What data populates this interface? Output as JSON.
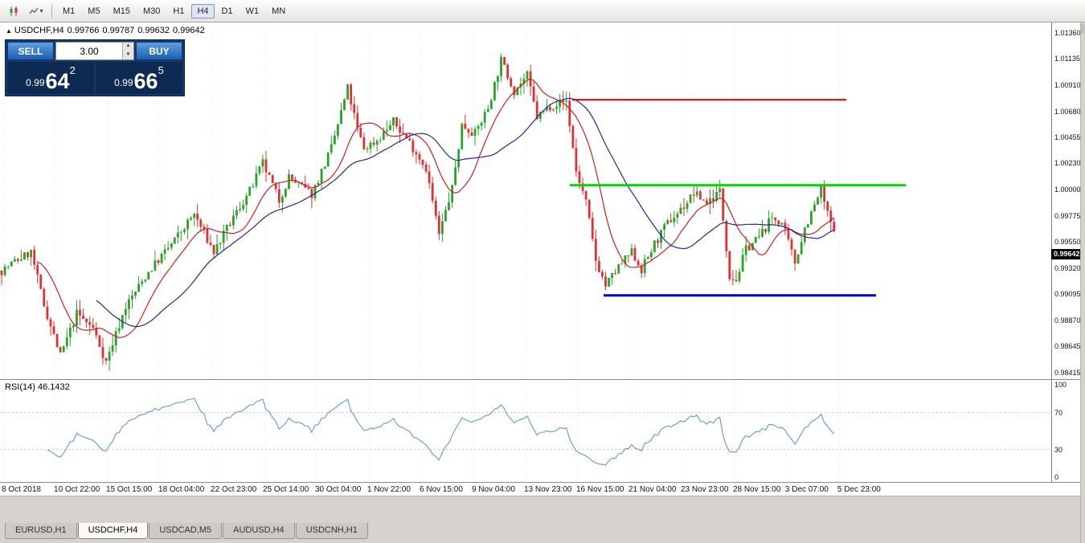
{
  "toolbar": {
    "timeframes": [
      {
        "label": "M1",
        "active": false
      },
      {
        "label": "M5",
        "active": false
      },
      {
        "label": "M15",
        "active": false
      },
      {
        "label": "M30",
        "active": false
      },
      {
        "label": "H1",
        "active": false
      },
      {
        "label": "H4",
        "active": true
      },
      {
        "label": "D1",
        "active": false
      },
      {
        "label": "W1",
        "active": false
      },
      {
        "label": "MN",
        "active": false
      }
    ]
  },
  "chart_header": {
    "expand_glyph": "▲",
    "symbol": "USDCHF,H4",
    "open": "0.99766",
    "high": "0.99787",
    "low": "0.99632",
    "close": "0.99642"
  },
  "trade_panel": {
    "sell_label": "SELL",
    "buy_label": "BUY",
    "volume": "3.00",
    "sell": {
      "prefix": "0.99",
      "big": "64",
      "sup": "2"
    },
    "buy": {
      "prefix": "0.99",
      "big": "66",
      "sup": "5"
    }
  },
  "price_axis": {
    "labels": [
      "1.01360",
      "1.01135",
      "1.00910",
      "1.00680",
      "1.00455",
      "1.00230",
      "1.00000",
      "0.99775",
      "0.99550",
      "0.99320",
      "0.99095",
      "0.98870",
      "0.98645",
      "0.98415"
    ],
    "current": "0.99642"
  },
  "time_axis": {
    "labels": [
      "8 Oct 2018",
      "10 Oct 22:00",
      "15 Oct 15:00",
      "18 Oct 04:00",
      "22 Oct 23:00",
      "25 Oct 14:00",
      "30 Oct 04:00",
      "1 Nov 22:00",
      "6 Nov 15:00",
      "9 Nov 04:00",
      "13 Nov 23:00",
      "16 Nov 15:00",
      "21 Nov 04:00",
      "23 Nov 23:00",
      "28 Nov 15:00",
      "3 Dec 07:00",
      "5 Dec 23:00"
    ]
  },
  "rsi": {
    "label": "RSI(14) 46.1432",
    "axis_labels": [
      "100",
      "70",
      "30",
      "0"
    ]
  },
  "tabs": [
    {
      "label": "EURUSD,H1",
      "active": false
    },
    {
      "label": "USDCHF,H4",
      "active": true
    },
    {
      "label": "USDCAD,M5",
      "active": false
    },
    {
      "label": "AUDUSD,H4",
      "active": false
    },
    {
      "label": "USDCNH,H1",
      "active": false
    }
  ],
  "colors": {
    "bull": "#28a428",
    "bear": "#e03030",
    "ma_fast": "#cc2020",
    "ma_slow": "#2626a0",
    "rsi_line": "#5b9bd5",
    "grid": "#e4e4e4",
    "level": "#c8c8c8"
  },
  "chart_data": {
    "type": "candlestick",
    "symbol": "USDCHF",
    "timeframe": "H4",
    "price_range": [
      0.9836,
      1.0145
    ],
    "candle_count": 256,
    "visible_span_frac": 0.795,
    "seed": 7,
    "noise": 0.0004,
    "wick": 0.0009,
    "last_close": 0.99642,
    "keyframes": [
      [
        0,
        0.993
      ],
      [
        4,
        0.9938
      ],
      [
        9,
        0.9946
      ],
      [
        13,
        0.99
      ],
      [
        18,
        0.9856
      ],
      [
        23,
        0.9893
      ],
      [
        28,
        0.988
      ],
      [
        32,
        0.9851
      ],
      [
        38,
        0.9899
      ],
      [
        45,
        0.9929
      ],
      [
        52,
        0.9953
      ],
      [
        59,
        0.9979
      ],
      [
        65,
        0.9946
      ],
      [
        71,
        0.9976
      ],
      [
        76,
        0.9999
      ],
      [
        80,
        1.0023
      ],
      [
        85,
        0.9991
      ],
      [
        88,
        1.0011
      ],
      [
        95,
        0.9996
      ],
      [
        101,
        1.0036
      ],
      [
        106,
        1.0088
      ],
      [
        109,
        1.0052
      ],
      [
        111,
        1.0036
      ],
      [
        115,
        1.0043
      ],
      [
        120,
        1.0059
      ],
      [
        125,
        1.0041
      ],
      [
        130,
        1.0019
      ],
      [
        134,
        0.9961
      ],
      [
        138,
        1.0001
      ],
      [
        141,
        1.0056
      ],
      [
        145,
        1.0049
      ],
      [
        149,
        1.0071
      ],
      [
        153,
        1.0112
      ],
      [
        157,
        1.0086
      ],
      [
        161,
        1.0099
      ],
      [
        164,
        1.0063
      ],
      [
        168,
        1.0073
      ],
      [
        173,
        1.0077
      ],
      [
        176,
        1.0016
      ],
      [
        179,
        0.9989
      ],
      [
        182,
        0.9939
      ],
      [
        185,
        0.9917
      ],
      [
        189,
        0.9933
      ],
      [
        193,
        0.9946
      ],
      [
        196,
        0.9931
      ],
      [
        200,
        0.9953
      ],
      [
        204,
        0.9971
      ],
      [
        209,
        0.9986
      ],
      [
        212,
        0.9997
      ],
      [
        216,
        0.9989
      ],
      [
        220,
        0.9999
      ],
      [
        223,
        0.9926
      ],
      [
        225,
        0.9922
      ],
      [
        228,
        0.9949
      ],
      [
        232,
        0.9959
      ],
      [
        236,
        0.9976
      ],
      [
        239,
        0.9971
      ],
      [
        243,
        0.9937
      ],
      [
        246,
        0.9967
      ],
      [
        249,
        0.9986
      ],
      [
        251,
        1.0001
      ],
      [
        253,
        0.9979
      ],
      [
        255,
        0.99642
      ]
    ],
    "overlays": [
      {
        "name": "MA fast",
        "type": "sma",
        "period": 12,
        "color_key": "ma_fast"
      },
      {
        "name": "MA slow",
        "type": "sma",
        "period": 30,
        "color_key": "ma_slow"
      }
    ],
    "hlines": [
      {
        "price": 1.0078,
        "x1": 0.544,
        "x2": 0.805,
        "color": "#cc0000",
        "width": 2
      },
      {
        "price": 1.0004,
        "x1": 0.542,
        "x2": 0.862,
        "color": "#00dd00",
        "width": 3
      },
      {
        "price": 0.99085,
        "x1": 0.574,
        "x2": 0.833,
        "color": "#0000cc",
        "width": 3
      }
    ],
    "indicator": {
      "name": "RSI",
      "period": 14,
      "value": 46.1432,
      "levels": [
        30,
        70
      ],
      "range": [
        0,
        100
      ]
    }
  }
}
